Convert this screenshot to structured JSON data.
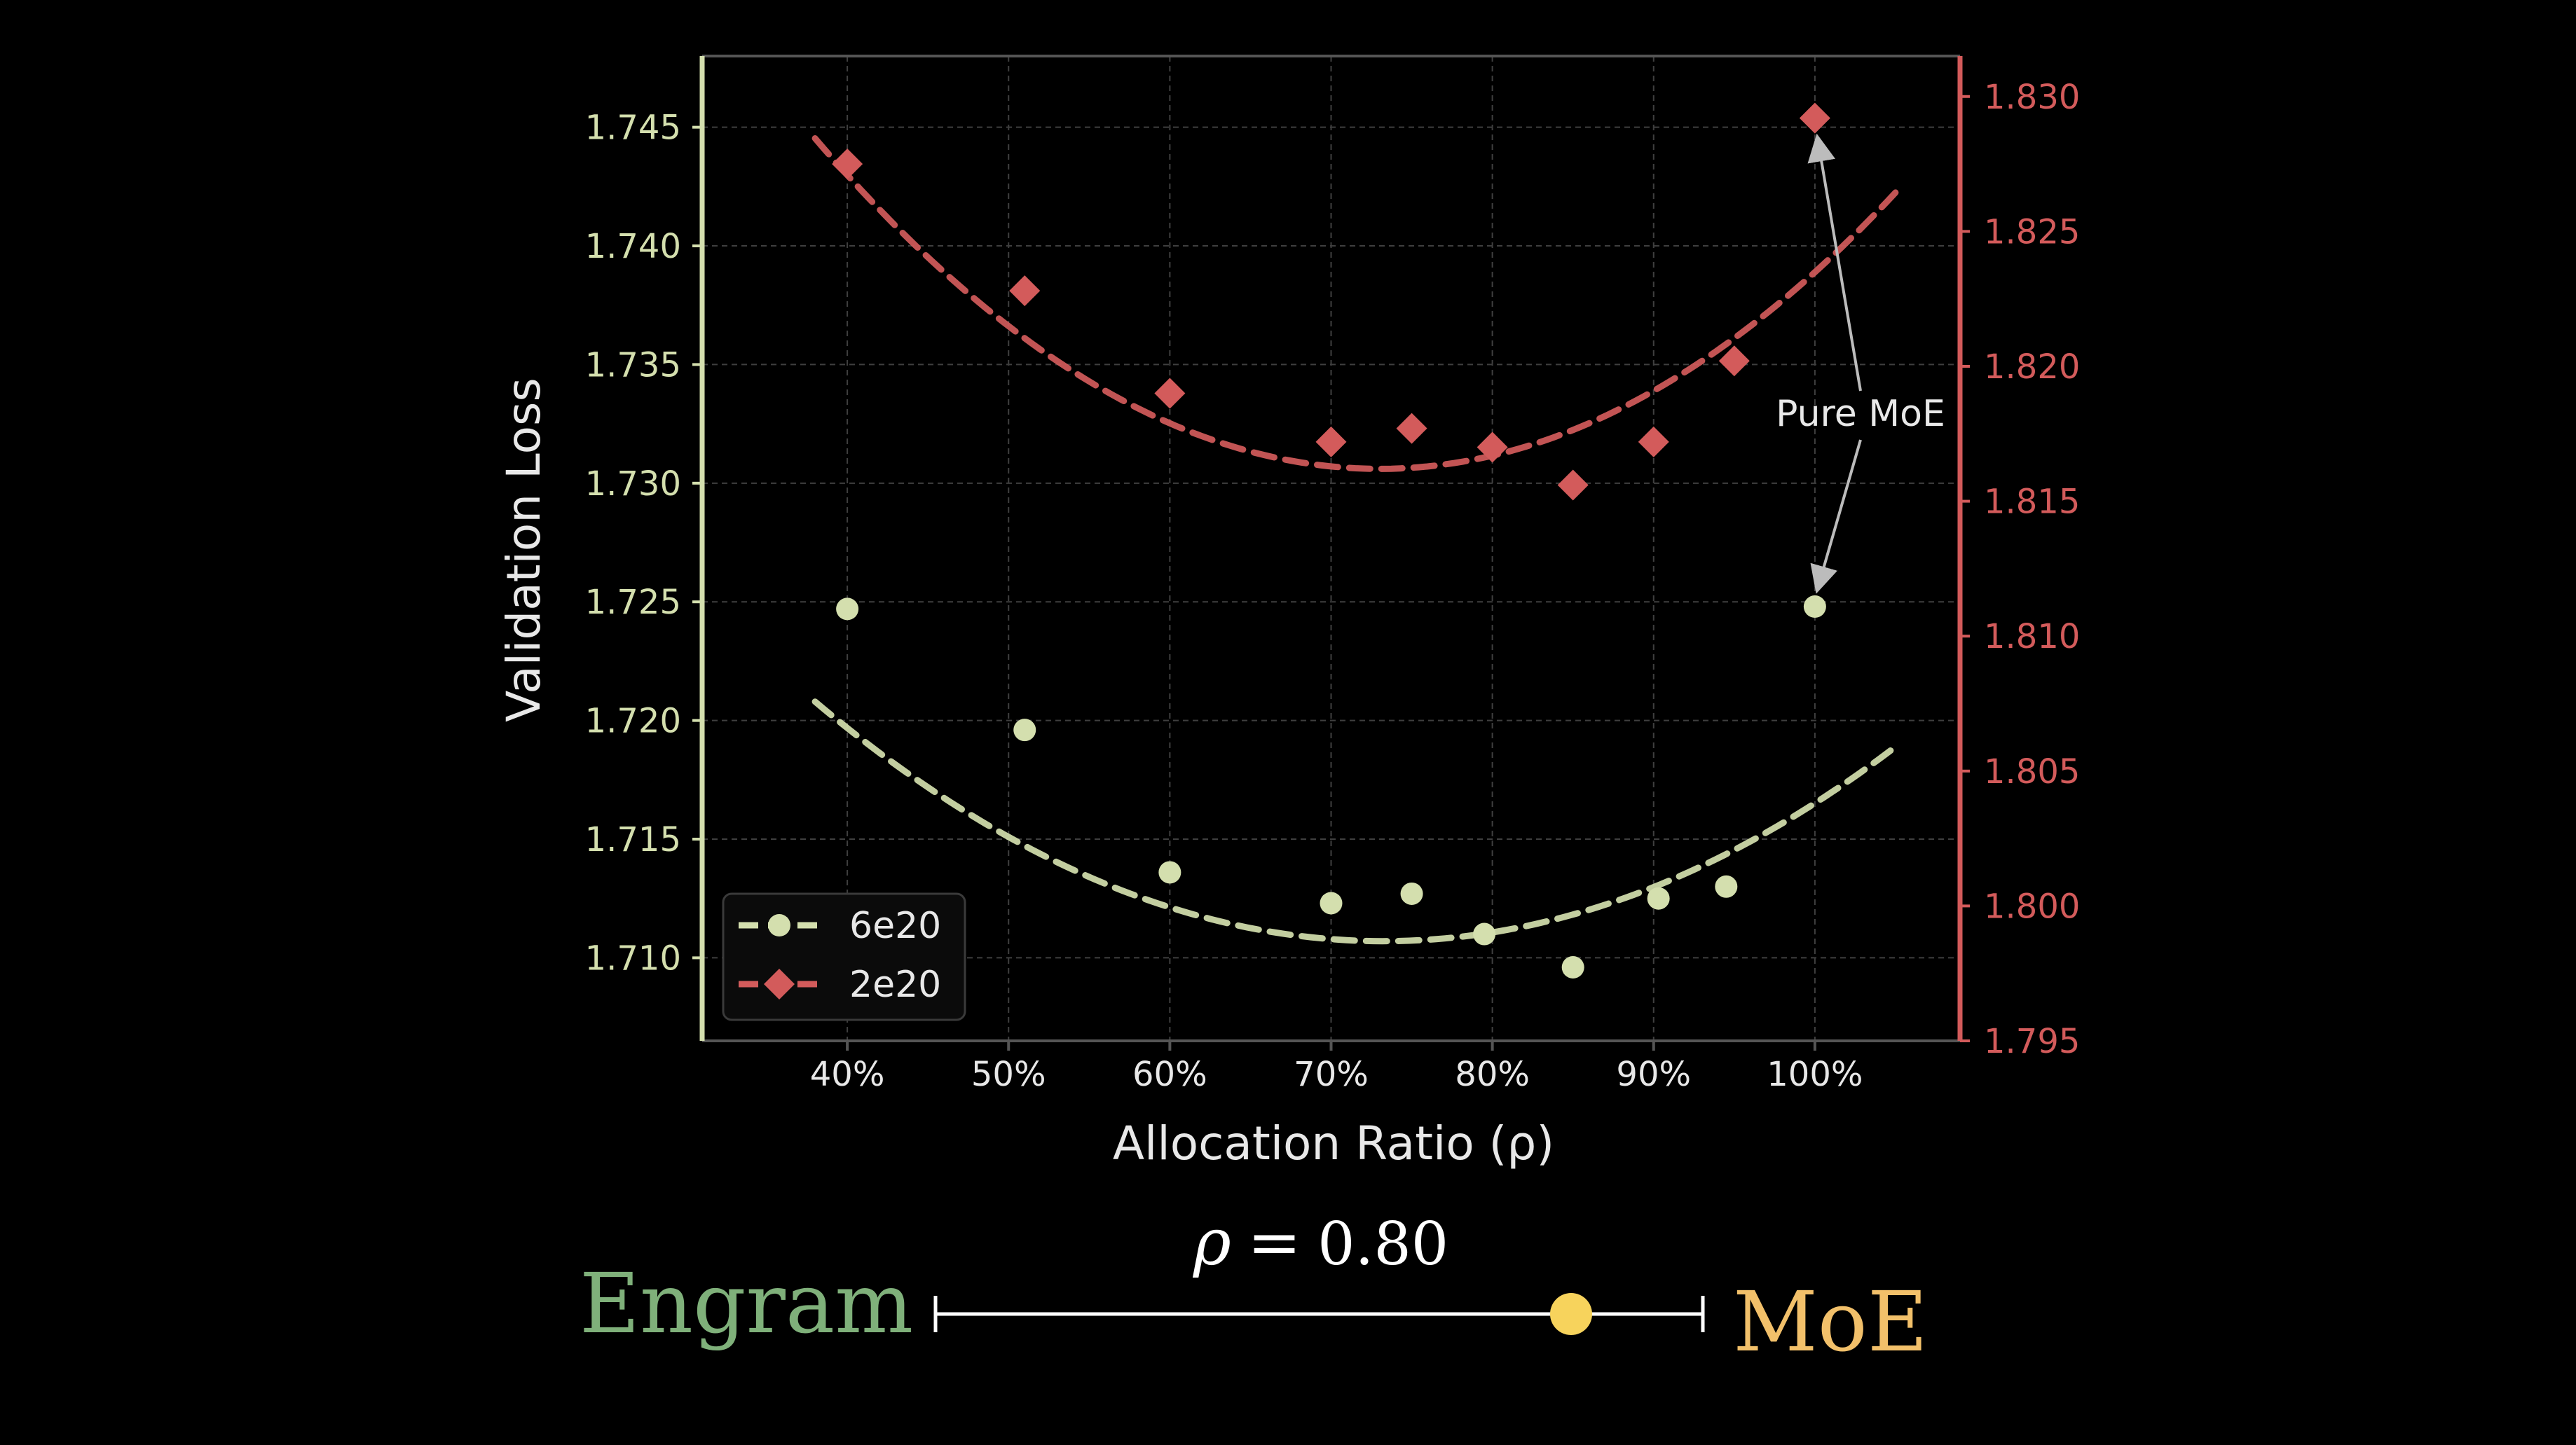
{
  "colors": {
    "background": "#000000",
    "axes_frame": "#555555",
    "grid": "#3f3f3f",
    "left_axis": "#d4dfae",
    "right_axis": "#d35b5b",
    "series_6e20": "#d4dfae",
    "series_2e20": "#d35b5b",
    "text": "#e8e8e8",
    "engram": "#7fb07a",
    "moe": "#f2c06a",
    "slider_knob": "#f7d35c",
    "slider_line": "#ffffff",
    "annotation": "#bcbcbc"
  },
  "chart_data": {
    "type": "scatter",
    "xlabel": "Allocation Ratio (ρ)",
    "ylabel": "Validation Loss",
    "x_ticks": [
      0.4,
      0.5,
      0.6,
      0.7,
      0.8,
      0.9,
      1.0
    ],
    "x_tick_labels": [
      "40%",
      "50%",
      "60%",
      "70%",
      "80%",
      "90%",
      "100%"
    ],
    "xlim": [
      0.31,
      1.09
    ],
    "y_left": {
      "lim": [
        1.7065,
        1.748
      ],
      "ticks": [
        1.71,
        1.715,
        1.72,
        1.725,
        1.73,
        1.735,
        1.74,
        1.745
      ],
      "tick_labels": [
        "1.710",
        "1.715",
        "1.720",
        "1.725",
        "1.730",
        "1.735",
        "1.740",
        "1.745"
      ]
    },
    "y_right": {
      "lim": [
        1.795,
        1.8315
      ],
      "ticks": [
        1.795,
        1.8,
        1.805,
        1.81,
        1.815,
        1.82,
        1.825,
        1.83
      ],
      "tick_labels": [
        "1.795",
        "1.800",
        "1.805",
        "1.810",
        "1.815",
        "1.820",
        "1.825",
        "1.830"
      ]
    },
    "grid": true,
    "legend": {
      "position": "lower-left",
      "entries": [
        {
          "label": "6e20",
          "marker": "circle",
          "series": 0
        },
        {
          "label": "2e20",
          "marker": "diamond",
          "series": 1
        }
      ]
    },
    "series": [
      {
        "name": "6e20",
        "axis": "left",
        "marker": "circle",
        "x": [
          0.4,
          0.51,
          0.6,
          0.7,
          0.75,
          0.795,
          0.85,
          0.903,
          0.945,
          1.0
        ],
        "y": [
          1.7247,
          1.7196,
          1.7136,
          1.7123,
          1.7127,
          1.711,
          1.7096,
          1.7125,
          1.713,
          1.7248
        ],
        "fit": {
          "x_range": [
            0.38,
            1.05
          ],
          "coeffs": [
            1.7107,
            0.0,
            81.25
          ],
          "center": 0.7325
        }
      },
      {
        "name": "2e20",
        "axis": "right",
        "marker": "diamond",
        "x": [
          0.4,
          0.51,
          0.6,
          0.7,
          0.75,
          0.8,
          0.85,
          0.9,
          0.95,
          1.0
        ],
        "y": [
          1.8275,
          1.8228,
          1.819,
          1.8172,
          1.8177,
          1.817,
          1.8156,
          1.8172,
          1.8202,
          1.8292
        ],
        "fit": {
          "x_range": [
            0.38,
            1.05
          ],
          "coeffs": [
            1.8162,
            0.0,
            100.0
          ],
          "center": 0.73
        }
      }
    ],
    "annotation": {
      "text": "Pure MoE",
      "targets": [
        {
          "series": 1,
          "x": 1.0,
          "y": 1.8292
        },
        {
          "series": 0,
          "x": 1.0,
          "y": 1.7248
        }
      ]
    }
  },
  "slider": {
    "rho_symbol": "ρ",
    "equals": "=",
    "value_text": "0.80",
    "value": 0.8,
    "left_label": "Engram",
    "right_label": "MoE"
  }
}
